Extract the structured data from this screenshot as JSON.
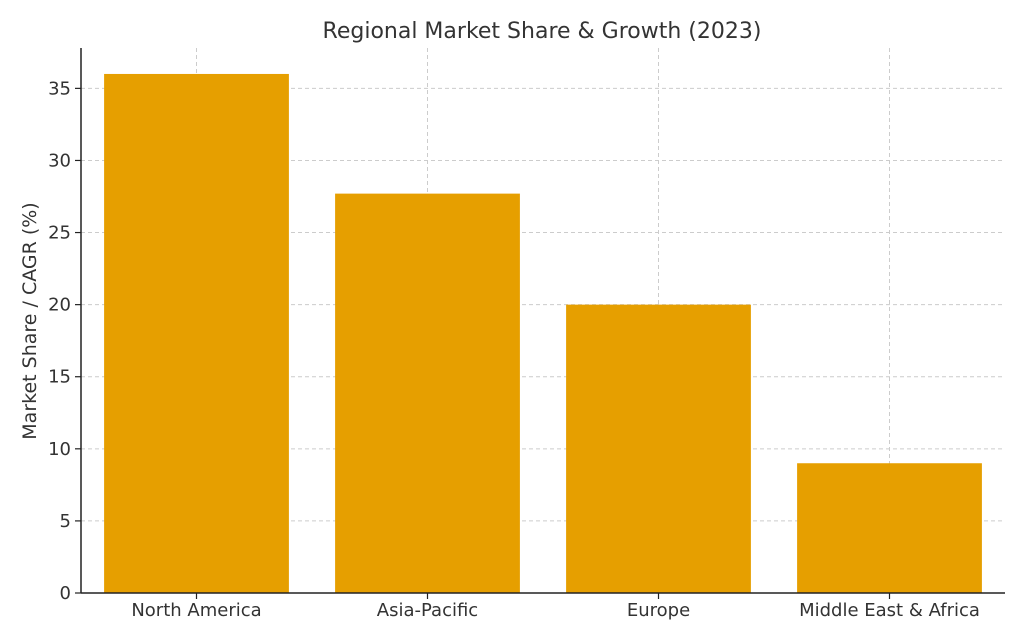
{
  "chart_data": {
    "type": "bar",
    "title": "Regional Market Share & Growth (2023)",
    "xlabel": "",
    "ylabel": "Market Share / CAGR (%)",
    "categories": [
      "North America",
      "Asia-Pacific",
      "Europe",
      "Middle East & Africa"
    ],
    "values": [
      36,
      27.7,
      20,
      9
    ],
    "ylim": [
      0,
      37.8
    ],
    "yticks": [
      0,
      5,
      10,
      15,
      20,
      25,
      30,
      35
    ],
    "grid": true,
    "bar_color": "#E69F00"
  }
}
